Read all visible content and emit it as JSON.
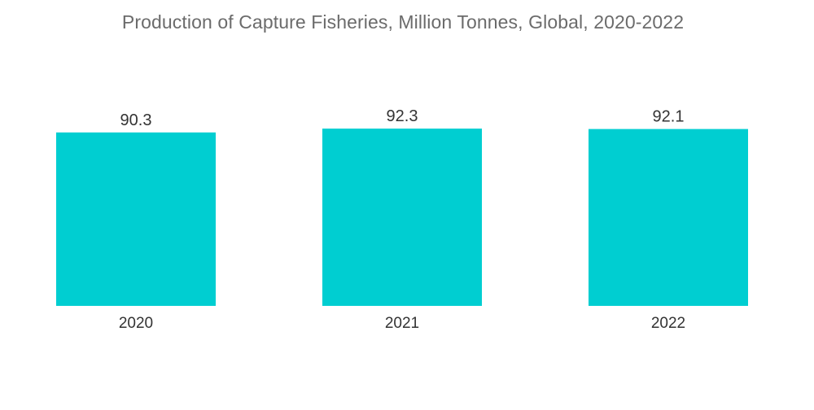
{
  "chart_data": {
    "type": "bar",
    "title": "Production of Capture Fisheries, Million Tonnes, Global,  2020-2022",
    "categories": [
      "2020",
      "2021",
      "2022"
    ],
    "values": [
      90.3,
      92.3,
      92.1
    ],
    "value_labels": [
      "90.3",
      "92.3",
      "92.1"
    ],
    "xlabel": "",
    "ylabel": "",
    "grid": false,
    "legend": "none",
    "bar_color": "#00ced1"
  }
}
